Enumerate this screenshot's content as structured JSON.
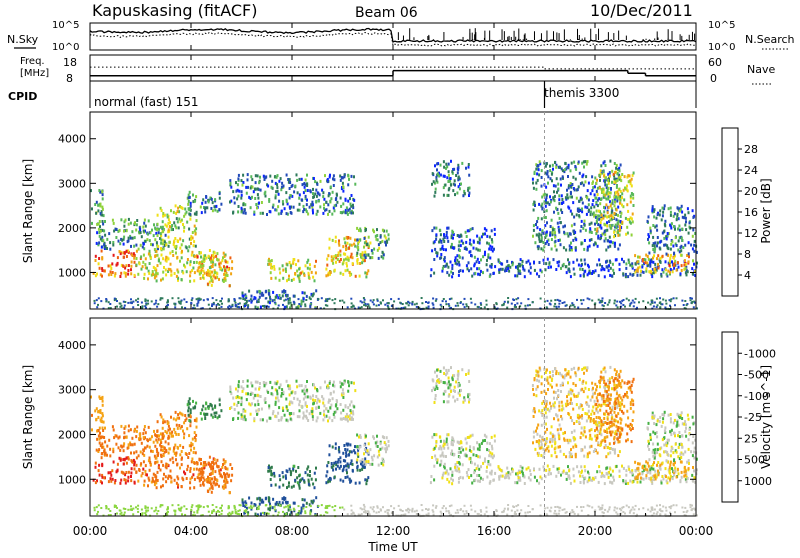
{
  "header": {
    "station": "Kapuskasing (fitACF)",
    "beam": "Beam 06",
    "date": "10/Dec/2011"
  },
  "top_panels": {
    "nsky": {
      "left_label": "N.Sky",
      "right_label": "N.Search",
      "left_ticks": [
        "10^5",
        "10^0"
      ],
      "right_ticks": [
        "10^5",
        "10^0"
      ]
    },
    "freq": {
      "left_label_line1": "Freq.",
      "left_label_line2": "[MHz]",
      "right_label": "Nave",
      "left_ticks": [
        "18",
        "8"
      ],
      "right_ticks": [
        "60",
        "0"
      ]
    },
    "cpid": {
      "label": "CPID",
      "segments": [
        {
          "name": "normal (fast) 151",
          "start_hour": 0,
          "end_hour": 18
        },
        {
          "name": "themis 3300",
          "start_hour": 18,
          "end_hour": 24
        }
      ]
    }
  },
  "time_axis": {
    "title": "Time UT",
    "tick_labels": [
      "00:00",
      "04:00",
      "08:00",
      "12:00",
      "16:00",
      "20:00",
      "00:00"
    ],
    "tick_hours": [
      0,
      4,
      8,
      12,
      16,
      20,
      24
    ]
  },
  "range_axis": {
    "title": "Slant Range [km]",
    "tick_labels": [
      "1000",
      "2000",
      "3000",
      "4000"
    ],
    "tick_values": [
      1000,
      2000,
      3000,
      4000
    ],
    "min": 180,
    "max": 4600
  },
  "power_scale": {
    "title": "Power [dB]",
    "tick_labels": [
      "4",
      "8",
      "12",
      "16",
      "20",
      "24",
      "28"
    ],
    "colors": [
      "#0b24ff",
      "#2049b8",
      "#2e7a5b",
      "#57b85a",
      "#8fd23a",
      "#f0e018",
      "#f0a412",
      "#ee5f10",
      "#e41a1a"
    ]
  },
  "velocity_scale": {
    "title": "Velocity [m s^-1]",
    "tick_labels": [
      "1000",
      "500",
      "25",
      "-25",
      "-100",
      "-500",
      "-1000"
    ],
    "colors": [
      "#2436c8",
      "#1f4f9a",
      "#2e7a4a",
      "#45b044",
      "#8bd640",
      "#c8c8c0",
      "#f0e018",
      "#f5a314",
      "#f07010",
      "#e41a1a"
    ]
  },
  "chart_data": {
    "type": "heatmap",
    "title": "Kapuskasing (fitACF) Beam 06 10/Dec/2011",
    "xlabel": "Time UT",
    "ylabel": "Slant Range [km]",
    "xlim": [
      0,
      24
    ],
    "ylim": [
      180,
      4600
    ],
    "grid": false,
    "colorbars": [
      "Power [dB]",
      "Velocity [m s^-1]"
    ],
    "frequency_mhz": [
      {
        "start_hour": 0,
        "end_hour": 12,
        "value": 10
      },
      {
        "start_hour": 12,
        "end_hour": 21.3,
        "value": 12
      },
      {
        "start_hour": 21.3,
        "end_hour": 22,
        "value": 11
      },
      {
        "start_hour": 22,
        "end_hour": 24,
        "value": 10
      }
    ],
    "nave": [
      {
        "start_hour": 0,
        "end_hour": 18,
        "value": 32
      },
      {
        "start_hour": 18,
        "end_hour": 24,
        "value": 28
      }
    ],
    "scatter_regions": [
      {
        "start_hour": 0.0,
        "end_hour": 0.5,
        "range_min": 2100,
        "range_max": 2900,
        "power_db": 12,
        "velocity": -200
      },
      {
        "start_hour": 0.1,
        "end_hour": 1.8,
        "range_min": 900,
        "range_max": 1500,
        "power_db": 26,
        "velocity": -800
      },
      {
        "start_hour": 0.2,
        "end_hour": 3.0,
        "range_min": 1500,
        "range_max": 2200,
        "power_db": 10,
        "velocity": -400
      },
      {
        "start_hour": 1.8,
        "end_hour": 5.4,
        "range_min": 800,
        "range_max": 1500,
        "power_db": 18,
        "velocity": -500
      },
      {
        "start_hour": 2.6,
        "end_hour": 4.2,
        "range_min": 1500,
        "range_max": 2500,
        "power_db": 16,
        "velocity": -300
      },
      {
        "start_hour": 3.8,
        "end_hour": 5.2,
        "range_min": 2300,
        "range_max": 2800,
        "power_db": 9,
        "velocity": 100
      },
      {
        "start_hour": 4.2,
        "end_hour": 5.6,
        "range_min": 700,
        "range_max": 1400,
        "power_db": 22,
        "velocity": -400
      },
      {
        "start_hour": 5.5,
        "end_hour": 10.5,
        "range_min": 2300,
        "range_max": 3200,
        "power_db": 8,
        "velocity": 10
      },
      {
        "start_hour": 6.0,
        "end_hour": 9.0,
        "range_min": 200,
        "range_max": 600,
        "power_db": 8,
        "velocity": 300
      },
      {
        "start_hour": 7.0,
        "end_hour": 9.0,
        "range_min": 800,
        "range_max": 1300,
        "power_db": 18,
        "velocity": 200
      },
      {
        "start_hour": 9.3,
        "end_hour": 11.0,
        "range_min": 900,
        "range_max": 1800,
        "power_db": 20,
        "velocity": 400
      },
      {
        "start_hour": 10.5,
        "end_hour": 11.8,
        "range_min": 1300,
        "range_max": 2000,
        "power_db": 12,
        "velocity": 0
      },
      {
        "start_hour": 13.4,
        "end_hour": 24.0,
        "range_min": 900,
        "range_max": 1300,
        "power_db": 6,
        "velocity": 0
      },
      {
        "start_hour": 13.5,
        "end_hour": 16.0,
        "range_min": 1300,
        "range_max": 2000,
        "power_db": 6,
        "velocity": 0
      },
      {
        "start_hour": 13.5,
        "end_hour": 15.0,
        "range_min": 2700,
        "range_max": 3500,
        "power_db": 8,
        "velocity": 0
      },
      {
        "start_hour": 17.5,
        "end_hour": 21.0,
        "range_min": 1500,
        "range_max": 3500,
        "power_db": 8,
        "velocity": -50
      },
      {
        "start_hour": 20.0,
        "end_hour": 21.5,
        "range_min": 1800,
        "range_max": 3300,
        "power_db": 18,
        "velocity": -300
      },
      {
        "start_hour": 21.5,
        "end_hour": 24.0,
        "range_min": 1000,
        "range_max": 1400,
        "power_db": 22,
        "velocity": -100
      },
      {
        "start_hour": 22.0,
        "end_hour": 24.0,
        "range_min": 1400,
        "range_max": 2500,
        "power_db": 8,
        "velocity": 0
      }
    ]
  }
}
